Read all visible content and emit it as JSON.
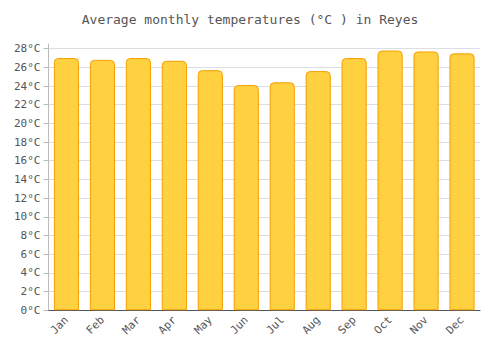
{
  "chart_data": {
    "type": "bar",
    "title": "Average monthly temperatures (°C ) in Reyes",
    "categories": [
      "Jan",
      "Feb",
      "Mar",
      "Apr",
      "May",
      "Jun",
      "Jul",
      "Aug",
      "Sep",
      "Oct",
      "Nov",
      "Dec"
    ],
    "values": [
      27.0,
      26.8,
      27.0,
      26.7,
      25.7,
      24.1,
      24.4,
      25.6,
      27.0,
      27.8,
      27.7,
      27.5
    ],
    "color": "#FFD040",
    "ylim": [
      0,
      28.5
    ],
    "yticks": [
      {
        "value": 0,
        "label": "0°C"
      },
      {
        "value": 2,
        "label": "2°C"
      },
      {
        "value": 4,
        "label": "4°C"
      },
      {
        "value": 6,
        "label": "6°C"
      },
      {
        "value": 8,
        "label": "8°C"
      },
      {
        "value": 10,
        "label": "10°C"
      },
      {
        "value": 12,
        "label": "12°C"
      },
      {
        "value": 14,
        "label": "14°C"
      },
      {
        "value": 16,
        "label": "16°C"
      },
      {
        "value": 18,
        "label": "18°C"
      },
      {
        "value": 20,
        "label": "20°C"
      },
      {
        "value": 22,
        "label": "22°C"
      },
      {
        "value": 24,
        "label": "24°C"
      },
      {
        "value": 26,
        "label": "26°C"
      },
      {
        "value": 28,
        "label": "28°C"
      }
    ],
    "grid": true
  }
}
